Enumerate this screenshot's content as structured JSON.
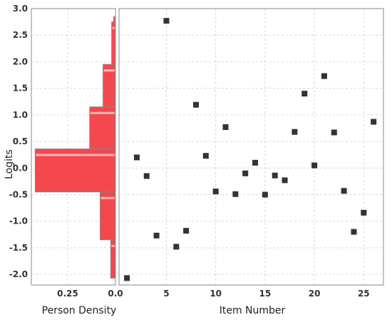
{
  "chart_data": [
    {
      "type": "bar",
      "orientation": "horizontal",
      "xlabel": "Person Density",
      "ylabel": "Logits",
      "xlim": [
        0.0,
        0.44
      ],
      "xreversed": true,
      "ylim": [
        -2.2,
        3.0
      ],
      "xticks": [
        "0.25",
        "0.0"
      ],
      "yticks": [
        "3.0",
        "2.5",
        "2.0",
        "1.5",
        "1.0",
        "0.5",
        "0.0",
        "-0.5",
        "-1.0",
        "-1.5",
        "-2.0"
      ],
      "grid": true,
      "bins": [
        {
          "from": -2.07,
          "to": -1.35,
          "density": 0.025
        },
        {
          "from": -1.35,
          "to": -0.45,
          "density": 0.08
        },
        {
          "from": -0.45,
          "to": 0.36,
          "density": 0.42
        },
        {
          "from": 0.36,
          "to": 1.15,
          "density": 0.135
        },
        {
          "from": 1.15,
          "to": 1.95,
          "density": 0.065
        },
        {
          "from": 1.95,
          "to": 2.75,
          "density": 0.02
        },
        {
          "from": 2.75,
          "to": 2.85,
          "density": 0.01
        }
      ],
      "colors": {
        "bar": "#f2484e",
        "bar_highlight": "#fbc3c6",
        "bar_edge": "#888888"
      }
    },
    {
      "type": "scatter",
      "xlabel": "Item Number",
      "ylabel": "Logits",
      "xlim": [
        0.2,
        27
      ],
      "ylim": [
        -2.2,
        3.0
      ],
      "xticks": [
        "5",
        "10",
        "15",
        "20",
        "25"
      ],
      "grid": true,
      "x": [
        1,
        2,
        3,
        4,
        5,
        6,
        7,
        8,
        9,
        10,
        11,
        12,
        13,
        14,
        15,
        16,
        17,
        18,
        19,
        20,
        21,
        22,
        23,
        24,
        25,
        26
      ],
      "y": [
        -2.07,
        0.2,
        -0.15,
        -1.27,
        2.77,
        -1.48,
        -1.18,
        1.19,
        0.23,
        -0.44,
        0.77,
        -0.49,
        -0.1,
        0.1,
        -0.5,
        -0.14,
        -0.23,
        0.68,
        1.4,
        0.05,
        1.73,
        0.67,
        -0.43,
        -1.2,
        -0.84,
        0.87
      ],
      "colors": {
        "marker": "#333333"
      }
    }
  ]
}
